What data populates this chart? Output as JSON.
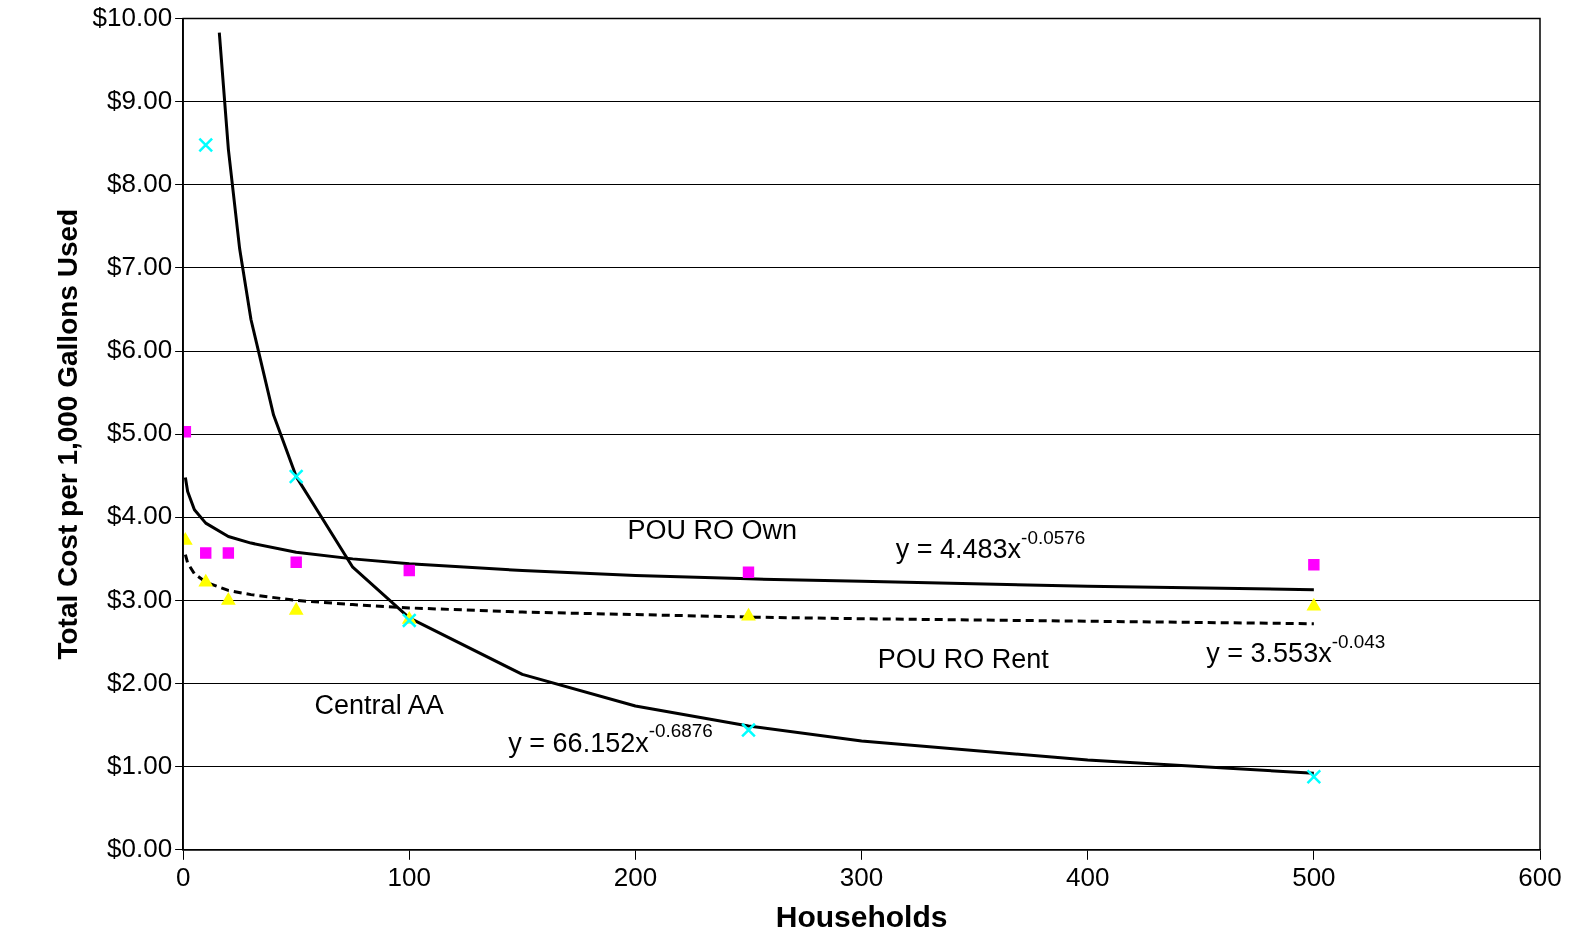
{
  "chart_data": {
    "type": "scatter",
    "xlabel": "Households",
    "ylabel": "Total Cost per 1,000 Gallons Used",
    "xlim": [
      0,
      600
    ],
    "xticks": [
      0,
      100,
      200,
      300,
      400,
      500,
      600
    ],
    "ylim": [
      0,
      10
    ],
    "yticks": [
      {
        "value": 0,
        "label": "$0.00"
      },
      {
        "value": 1,
        "label": "$1.00"
      },
      {
        "value": 2,
        "label": "$2.00"
      },
      {
        "value": 3,
        "label": "$3.00"
      },
      {
        "value": 4,
        "label": "$4.00"
      },
      {
        "value": 5,
        "label": "$5.00"
      },
      {
        "value": 6,
        "label": "$6.00"
      },
      {
        "value": 7,
        "label": "$7.00"
      },
      {
        "value": 8,
        "label": "$8.00"
      },
      {
        "value": 9,
        "label": "$9.00"
      },
      {
        "value": 10,
        "label": "$10.00"
      }
    ],
    "grid": "y",
    "legend": false,
    "series": [
      {
        "type": "scatter",
        "marker": "square",
        "color": "#ff00ff",
        "x": [
          1,
          10,
          20,
          50,
          100,
          250,
          500
        ],
        "values": [
          5.03,
          3.57,
          3.57,
          3.46,
          3.36,
          3.34,
          3.43
        ]
      },
      {
        "type": "scatter",
        "marker": "triangle",
        "color": "#ffff00",
        "x": [
          1,
          10,
          20,
          50,
          100,
          250,
          500
        ],
        "values": [
          3.72,
          3.22,
          3.0,
          2.88,
          2.77,
          2.81,
          2.93
        ]
      },
      {
        "type": "scatter",
        "marker": "cross",
        "color": "#00ffff",
        "x": [
          10,
          50,
          100,
          250,
          500
        ],
        "values": [
          8.48,
          4.49,
          2.76,
          1.44,
          0.88
        ]
      },
      {
        "type": "line",
        "marker": "none",
        "line_style": "solid",
        "color": "#000000",
        "x": [
          1,
          2,
          5,
          10,
          20,
          30,
          50,
          75,
          100,
          150,
          200,
          250,
          300,
          400,
          500
        ],
        "values": [
          4.48,
          4.31,
          4.09,
          3.93,
          3.77,
          3.69,
          3.58,
          3.5,
          3.44,
          3.36,
          3.3,
          3.26,
          3.23,
          3.17,
          3.13
        ]
      },
      {
        "type": "line",
        "marker": "none",
        "line_style": "dashed",
        "color": "#000000",
        "x": [
          1,
          2,
          5,
          10,
          20,
          30,
          50,
          75,
          100,
          150,
          200,
          250,
          300,
          400,
          500
        ],
        "values": [
          3.55,
          3.45,
          3.32,
          3.22,
          3.12,
          3.07,
          3.0,
          2.95,
          2.91,
          2.86,
          2.83,
          2.8,
          2.78,
          2.75,
          2.72
        ]
      },
      {
        "type": "line",
        "marker": "none",
        "line_style": "solid",
        "color": "#000000",
        "x": [
          16,
          20,
          25,
          30,
          40,
          50,
          75,
          100,
          150,
          200,
          250,
          300,
          400,
          500
        ],
        "values": [
          9.83,
          8.43,
          7.23,
          6.38,
          5.23,
          4.49,
          3.4,
          2.79,
          2.11,
          1.73,
          1.49,
          1.31,
          1.08,
          0.92
        ]
      }
    ],
    "annotations": [
      "POU RO Own",
      "y = 4.483x$^{-0.0576}$",
      "POU RO Rent",
      "y = 3.553x$^{-0.043}$",
      "Central AA",
      "y = 66.152x$^{-0.6876}$"
    ]
  }
}
